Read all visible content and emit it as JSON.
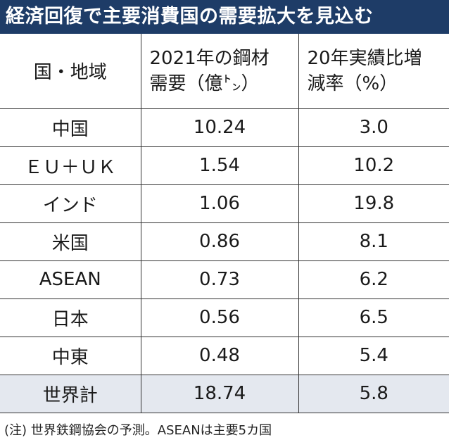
{
  "title": "経済回復で主要消費国の需要拡大を見込む",
  "table": {
    "headers": {
      "region": "国・地域",
      "demand_line1": "2021年の鋼材",
      "demand_line2": "需要（億㌧）",
      "change_line1": "20年実績比増",
      "change_line2": "減率（%）"
    },
    "rows": [
      {
        "region": "中国",
        "demand": "10.24",
        "change": "3.0"
      },
      {
        "region": "ＥＵ＋ＵＫ",
        "demand": "1.54",
        "change": "10.2"
      },
      {
        "region": "インド",
        "demand": "1.06",
        "change": "19.8"
      },
      {
        "region": "米国",
        "demand": "0.86",
        "change": "8.1"
      },
      {
        "region": "ASEAN",
        "demand": "0.73",
        "change": "6.2"
      },
      {
        "region": "日本",
        "demand": "0.56",
        "change": "6.5"
      },
      {
        "region": "中東",
        "demand": "0.48",
        "change": "5.4"
      }
    ],
    "total": {
      "region": "世界計",
      "demand": "18.74",
      "change": "5.8"
    }
  },
  "note": "(注) 世界鉄鋼協会の予測。ASEANは主要5カ国",
  "colors": {
    "title_background": "#1e3c67",
    "title_text": "#ffffff",
    "total_row_background": "#e4e8ef",
    "grid_lines": "#333333"
  }
}
